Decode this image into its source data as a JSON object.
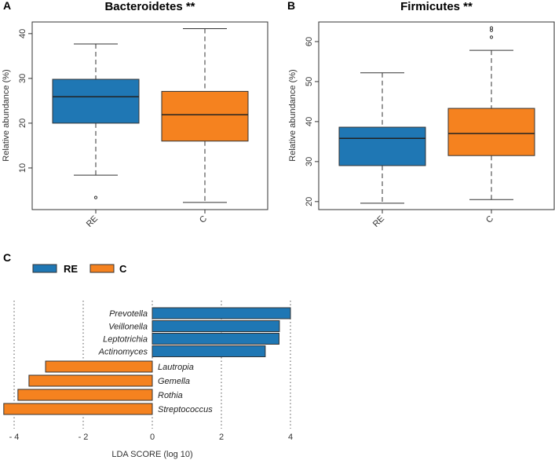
{
  "chart_data": [
    {
      "panel": "A",
      "type": "box",
      "title": "Bacteroidetes **",
      "ylabel": "Relative abundance (%)",
      "ylim": [
        0.7,
        42.6
      ],
      "yticks": [
        10,
        20,
        30,
        40
      ],
      "categories": [
        "RE",
        "C"
      ],
      "colors": [
        "#1f77b4",
        "#f5821f"
      ],
      "boxes": [
        {
          "whisker_low": 8.4,
          "q1": 20.0,
          "median": 25.9,
          "q3": 29.8,
          "whisker_high": 37.7,
          "outliers": [
            3.4
          ]
        },
        {
          "whisker_low": 2.3,
          "q1": 16.0,
          "median": 21.9,
          "q3": 27.1,
          "whisker_high": 41.1,
          "outliers": []
        }
      ]
    },
    {
      "panel": "B",
      "type": "box",
      "title": "Firmicutes **",
      "ylabel": "Relative abundance (%)",
      "ylim": [
        18.0,
        64.9
      ],
      "yticks": [
        20,
        30,
        40,
        50,
        60
      ],
      "categories": [
        "RE",
        "C"
      ],
      "colors": [
        "#1f77b4",
        "#f5821f"
      ],
      "boxes": [
        {
          "whisker_low": 19.6,
          "q1": 29.0,
          "median": 35.8,
          "q3": 38.6,
          "whisker_high": 52.2,
          "outliers": []
        },
        {
          "whisker_low": 20.5,
          "q1": 31.5,
          "median": 37.0,
          "q3": 43.3,
          "whisker_high": 57.8,
          "outliers": [
            61.1,
            62.8,
            63.4
          ]
        }
      ]
    },
    {
      "panel": "C",
      "type": "bar",
      "orientation": "horizontal",
      "xlabel": "LDA SCORE (log 10)",
      "xlim": [
        -4.3,
        4.0
      ],
      "xticks": [
        -4,
        -2,
        0,
        2,
        4
      ],
      "xtick_labels": [
        "- 4",
        "- 2",
        "0",
        "2",
        "4"
      ],
      "grid": "vertical dotted",
      "legend": {
        "position": "top-left",
        "entries": [
          {
            "name": "RE",
            "color": "#1f77b4"
          },
          {
            "name": "C",
            "color": "#f5821f"
          }
        ]
      },
      "categories": [
        "Prevotella",
        "Veillonella",
        "Leptotrichia",
        "Actinomyces",
        "Lautropia",
        "Gemella",
        "Rothia",
        "Streptococcus"
      ],
      "values": [
        4.0,
        3.68,
        3.67,
        3.27,
        -3.09,
        -3.57,
        -3.89,
        -4.3
      ],
      "groups": [
        "RE",
        "RE",
        "RE",
        "RE",
        "C",
        "C",
        "C",
        "C"
      ]
    }
  ],
  "panel_labels": [
    "A",
    "B",
    "C"
  ]
}
